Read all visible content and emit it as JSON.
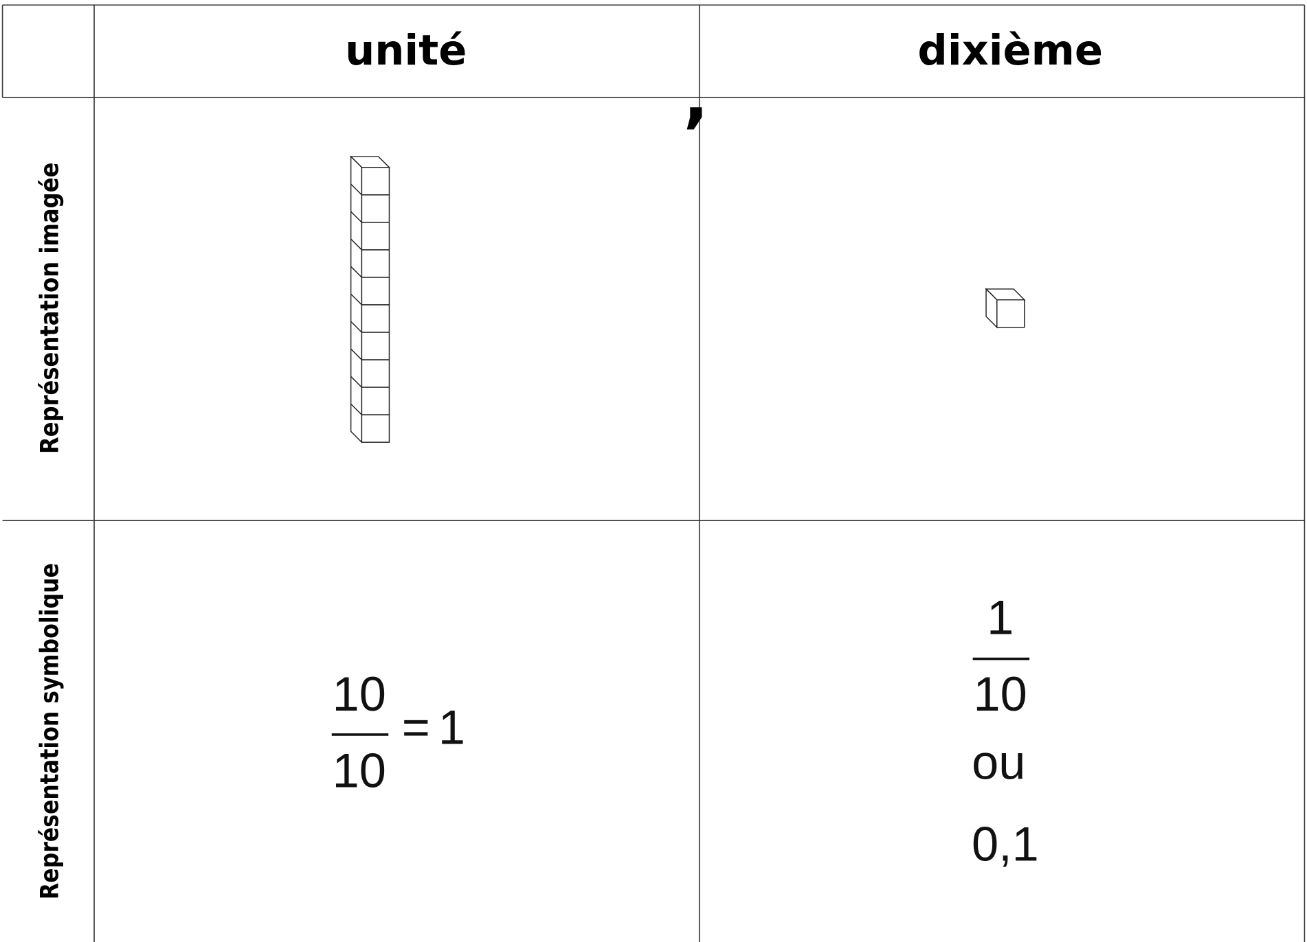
{
  "table": {
    "headers": [
      "unité",
      "dixième"
    ],
    "separator": ",",
    "row_labels": [
      "Représentation imagée",
      "Représentation symbolique"
    ],
    "unite_symbolic": {
      "numerator": "10",
      "denominator": "10",
      "equals": "=",
      "result": "1"
    },
    "dixieme_symbolic": {
      "numerator": "1",
      "denominator": "10",
      "or": "ou",
      "decimal": "0,1"
    }
  }
}
